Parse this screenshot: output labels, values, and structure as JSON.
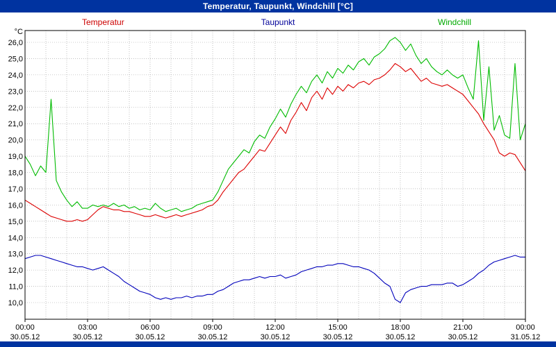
{
  "title_bar": {
    "title": "Temperatur, Taupunkt, Windchill [°C]",
    "background": "#0033a0",
    "text_color": "#ffffff"
  },
  "legend": [
    {
      "label": "Temperatur",
      "color": "#cc0000"
    },
    {
      "label": "Taupunkt",
      "color": "#000099"
    },
    {
      "label": "Windchill",
      "color": "#00aa00"
    }
  ],
  "y_axis": {
    "unit": "°C",
    "tick_labels": [
      "26,0",
      "25,0",
      "24,0",
      "23,0",
      "22,0",
      "21,0",
      "20,0",
      "19,0",
      "18,0",
      "17,0",
      "16,0",
      "15,0",
      "14,0",
      "13,0",
      "12,0",
      "11,0",
      "10,0"
    ]
  },
  "x_axis": {
    "tick_times": [
      "00:00",
      "03:00",
      "06:00",
      "09:00",
      "12:00",
      "15:00",
      "18:00",
      "21:00",
      "00:00"
    ],
    "tick_dates": [
      "30.05.12",
      "30.05.12",
      "30.05.12",
      "30.05.12",
      "30.05.12",
      "30.05.12",
      "30.05.12",
      "30.05.12",
      "31.05.12"
    ]
  },
  "colors": {
    "grid": "#999999",
    "frame": "#000000",
    "plot_bg": "#ffffff",
    "bottom_bar": "#0033a0"
  },
  "chart_data": {
    "type": "line",
    "title": "Temperatur, Taupunkt, Windchill [°C]",
    "x_unit": "hours",
    "x_start": 0,
    "x_step": 0.25,
    "xlim": [
      0,
      24
    ],
    "ylim": [
      10,
      26
    ],
    "grid": true,
    "legend_position": "top",
    "xtick_hours": [
      0,
      3,
      6,
      9,
      12,
      15,
      18,
      21,
      24
    ],
    "series": [
      {
        "name": "Temperatur",
        "color": "#dd0000",
        "values": [
          16.3,
          16.1,
          15.9,
          15.7,
          15.5,
          15.3,
          15.2,
          15.1,
          15.0,
          15.0,
          15.1,
          15.0,
          15.1,
          15.4,
          15.7,
          15.9,
          15.8,
          15.7,
          15.7,
          15.6,
          15.6,
          15.5,
          15.4,
          15.3,
          15.3,
          15.4,
          15.3,
          15.2,
          15.3,
          15.4,
          15.3,
          15.4,
          15.5,
          15.6,
          15.7,
          15.9,
          16.0,
          16.3,
          16.8,
          17.2,
          17.6,
          18.0,
          18.2,
          18.6,
          19.0,
          19.4,
          19.3,
          19.8,
          20.3,
          20.8,
          20.4,
          21.2,
          21.7,
          22.3,
          21.8,
          22.6,
          23.0,
          22.5,
          23.2,
          22.8,
          23.3,
          23.0,
          23.4,
          23.2,
          23.5,
          23.6,
          23.4,
          23.7,
          23.8,
          24.0,
          24.3,
          24.7,
          24.5,
          24.2,
          24.4,
          24.0,
          23.6,
          23.8,
          23.5,
          23.4,
          23.3,
          23.4,
          23.2,
          23.0,
          22.8,
          22.4,
          22.0,
          21.6,
          21.0,
          20.5,
          20.0,
          19.2,
          19.0,
          19.2,
          19.1,
          18.6,
          18.1
        ]
      },
      {
        "name": "Taupunkt",
        "color": "#0000bb",
        "values": [
          12.7,
          12.8,
          12.9,
          12.9,
          12.8,
          12.7,
          12.6,
          12.5,
          12.4,
          12.3,
          12.2,
          12.2,
          12.1,
          12.0,
          12.1,
          12.2,
          12.0,
          11.8,
          11.6,
          11.3,
          11.1,
          10.9,
          10.7,
          10.6,
          10.5,
          10.3,
          10.2,
          10.3,
          10.2,
          10.3,
          10.3,
          10.4,
          10.3,
          10.4,
          10.4,
          10.5,
          10.5,
          10.7,
          10.8,
          11.0,
          11.2,
          11.3,
          11.4,
          11.4,
          11.5,
          11.6,
          11.5,
          11.6,
          11.6,
          11.7,
          11.5,
          11.6,
          11.7,
          11.9,
          12.0,
          12.1,
          12.2,
          12.2,
          12.3,
          12.3,
          12.4,
          12.4,
          12.3,
          12.2,
          12.2,
          12.1,
          12.0,
          11.8,
          11.5,
          11.2,
          11.0,
          10.2,
          10.0,
          10.6,
          10.8,
          10.9,
          11.0,
          11.0,
          11.1,
          11.1,
          11.1,
          11.2,
          11.2,
          11.0,
          11.1,
          11.3,
          11.5,
          11.8,
          12.0,
          12.3,
          12.5,
          12.6,
          12.7,
          12.8,
          12.9,
          12.8,
          12.8
        ]
      },
      {
        "name": "Windchill",
        "color": "#00bb00",
        "values": [
          19.0,
          18.5,
          17.8,
          18.4,
          18.0,
          22.5,
          17.5,
          16.8,
          16.3,
          15.9,
          16.2,
          15.8,
          15.8,
          16.0,
          15.9,
          16.0,
          15.9,
          16.1,
          15.9,
          16.0,
          15.8,
          15.9,
          15.7,
          15.8,
          15.7,
          16.1,
          15.8,
          15.6,
          15.7,
          15.8,
          15.6,
          15.7,
          15.8,
          16.0,
          16.1,
          16.2,
          16.3,
          16.8,
          17.5,
          18.2,
          18.6,
          19.0,
          19.4,
          19.2,
          19.9,
          20.3,
          20.1,
          20.8,
          21.3,
          21.9,
          21.4,
          22.2,
          22.8,
          23.3,
          22.9,
          23.6,
          24.0,
          23.5,
          24.2,
          23.8,
          24.4,
          24.1,
          24.6,
          24.3,
          24.8,
          25.0,
          24.6,
          25.1,
          25.3,
          25.6,
          26.1,
          26.3,
          26.0,
          25.5,
          25.9,
          25.2,
          24.7,
          25.0,
          24.5,
          24.2,
          24.0,
          24.3,
          24.0,
          23.8,
          24.0,
          23.2,
          22.5,
          26.1,
          21.2,
          24.5,
          20.6,
          21.5,
          20.3,
          20.1,
          24.7,
          20.0,
          21.0
        ]
      }
    ]
  }
}
